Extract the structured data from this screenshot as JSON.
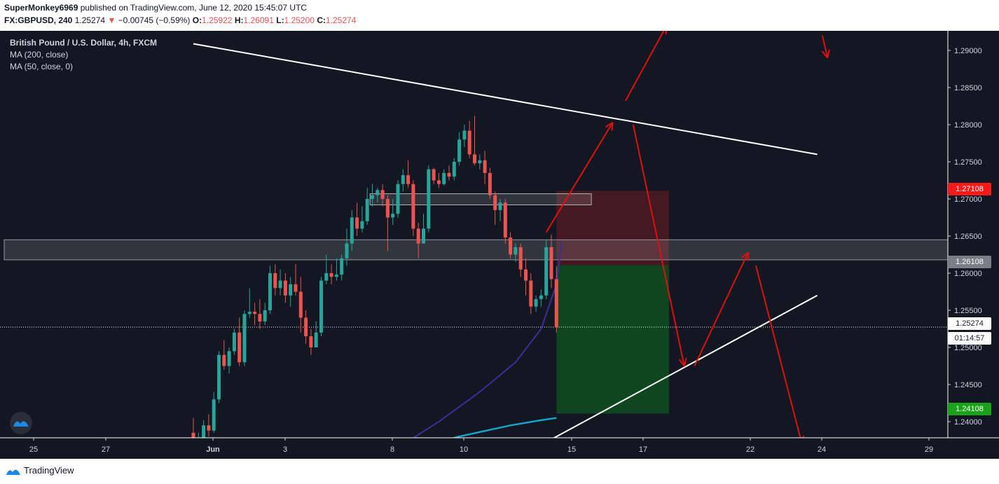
{
  "header": {
    "publisher": "SuperMonkey6969",
    "published_text": "published on TradingView.com, June 12, 2020 15:45:07 UTC",
    "symbol": "FX:GBPUSD, 240",
    "last_price": "1.25274",
    "change_arrow": "▼",
    "change": "−0.00745 (−0.59%)",
    "o_label": "O:",
    "o_value": "1.25922",
    "h_label": "H:",
    "h_value": "1.26091",
    "l_label": "L:",
    "l_value": "1.25200",
    "c_label": "C:",
    "c_value": "1.25274"
  },
  "legend": {
    "title": "British Pound / U.S. Dollar, 4h, FXCM",
    "ma200": "MA (200, close)",
    "ma50": "MA (50, close, 0)"
  },
  "badges": {
    "stop_price": "1.27108",
    "entry_price": "1.26108",
    "current_price": "1.25274",
    "countdown": "01:14:57",
    "target_price": "1.24108"
  },
  "footer": {
    "brand": "TradingView"
  },
  "colors": {
    "background": "#131722",
    "bull": "#26a69a",
    "bear": "#ef5350",
    "ma50": "#3b2f9e",
    "ma200": "#17a6c9",
    "annotation": "#e01010",
    "stop_zone": "#4a1a22",
    "target_zone": "#0f4a1f"
  },
  "chart_data": {
    "type": "candlestick",
    "symbol": "FX:GBPUSD",
    "timeframe": "4h",
    "x_tick_labels": [
      "25",
      "27",
      "Jun",
      "3",
      "8",
      "10",
      "15",
      "17",
      "22",
      "24",
      "29"
    ],
    "y_tick_labels": [
      "1.29000",
      "1.28500",
      "1.28000",
      "1.27500",
      "1.27000",
      "1.26500",
      "1.26000",
      "1.25500",
      "1.25000",
      "1.24500",
      "1.24000"
    ],
    "ylim": [
      1.2365,
      1.2905
    ],
    "candles": [
      {
        "o": 1.2385,
        "h": 1.2405,
        "l": 1.236,
        "c": 1.237
      },
      {
        "o": 1.237,
        "h": 1.2385,
        "l": 1.236,
        "c": 1.2378
      },
      {
        "o": 1.2378,
        "h": 1.2402,
        "l": 1.237,
        "c": 1.2395
      },
      {
        "o": 1.2395,
        "h": 1.241,
        "l": 1.238,
        "c": 1.2388
      },
      {
        "o": 1.2388,
        "h": 1.244,
        "l": 1.2385,
        "c": 1.243
      },
      {
        "o": 1.243,
        "h": 1.2495,
        "l": 1.2425,
        "c": 1.249
      },
      {
        "o": 1.249,
        "h": 1.251,
        "l": 1.247,
        "c": 1.2475
      },
      {
        "o": 1.2475,
        "h": 1.25,
        "l": 1.2465,
        "c": 1.2495
      },
      {
        "o": 1.2495,
        "h": 1.2525,
        "l": 1.249,
        "c": 1.252
      },
      {
        "o": 1.252,
        "h": 1.254,
        "l": 1.2475,
        "c": 1.248
      },
      {
        "o": 1.248,
        "h": 1.255,
        "l": 1.2475,
        "c": 1.2545
      },
      {
        "o": 1.2545,
        "h": 1.258,
        "l": 1.254,
        "c": 1.2548
      },
      {
        "o": 1.2548,
        "h": 1.256,
        "l": 1.253,
        "c": 1.2545
      },
      {
        "o": 1.2545,
        "h": 1.2565,
        "l": 1.2525,
        "c": 1.2535
      },
      {
        "o": 1.2535,
        "h": 1.256,
        "l": 1.253,
        "c": 1.255
      },
      {
        "o": 1.255,
        "h": 1.261,
        "l": 1.2545,
        "c": 1.26
      },
      {
        "o": 1.26,
        "h": 1.2612,
        "l": 1.257,
        "c": 1.258
      },
      {
        "o": 1.258,
        "h": 1.2605,
        "l": 1.257,
        "c": 1.259
      },
      {
        "o": 1.259,
        "h": 1.26,
        "l": 1.256,
        "c": 1.257
      },
      {
        "o": 1.257,
        "h": 1.2595,
        "l": 1.2555,
        "c": 1.2585
      },
      {
        "o": 1.2585,
        "h": 1.2612,
        "l": 1.257,
        "c": 1.2575
      },
      {
        "o": 1.2575,
        "h": 1.2595,
        "l": 1.252,
        "c": 1.254
      },
      {
        "o": 1.254,
        "h": 1.255,
        "l": 1.2505,
        "c": 1.2515
      },
      {
        "o": 1.2515,
        "h": 1.2525,
        "l": 1.249,
        "c": 1.25
      },
      {
        "o": 1.25,
        "h": 1.2535,
        "l": 1.25,
        "c": 1.252
      },
      {
        "o": 1.252,
        "h": 1.2595,
        "l": 1.2515,
        "c": 1.259
      },
      {
        "o": 1.259,
        "h": 1.2625,
        "l": 1.2585,
        "c": 1.26
      },
      {
        "o": 1.26,
        "h": 1.2612,
        "l": 1.2585,
        "c": 1.2595
      },
      {
        "o": 1.2595,
        "h": 1.262,
        "l": 1.259,
        "c": 1.2598
      },
      {
        "o": 1.2598,
        "h": 1.2625,
        "l": 1.259,
        "c": 1.262
      },
      {
        "o": 1.262,
        "h": 1.266,
        "l": 1.261,
        "c": 1.264
      },
      {
        "o": 1.264,
        "h": 1.2685,
        "l": 1.263,
        "c": 1.2675
      },
      {
        "o": 1.2675,
        "h": 1.2695,
        "l": 1.265,
        "c": 1.266
      },
      {
        "o": 1.266,
        "h": 1.269,
        "l": 1.2655,
        "c": 1.267
      },
      {
        "o": 1.267,
        "h": 1.2715,
        "l": 1.2665,
        "c": 1.27
      },
      {
        "o": 1.27,
        "h": 1.272,
        "l": 1.269,
        "c": 1.2705
      },
      {
        "o": 1.2705,
        "h": 1.2715,
        "l": 1.2695,
        "c": 1.2712
      },
      {
        "o": 1.2712,
        "h": 1.272,
        "l": 1.269,
        "c": 1.27
      },
      {
        "o": 1.27,
        "h": 1.2705,
        "l": 1.263,
        "c": 1.2675
      },
      {
        "o": 1.2675,
        "h": 1.27,
        "l": 1.2665,
        "c": 1.268
      },
      {
        "o": 1.268,
        "h": 1.2725,
        "l": 1.2675,
        "c": 1.272
      },
      {
        "o": 1.272,
        "h": 1.274,
        "l": 1.271,
        "c": 1.2732
      },
      {
        "o": 1.2732,
        "h": 1.2752,
        "l": 1.2715,
        "c": 1.272
      },
      {
        "o": 1.272,
        "h": 1.2725,
        "l": 1.265,
        "c": 1.266
      },
      {
        "o": 1.266,
        "h": 1.2668,
        "l": 1.262,
        "c": 1.264
      },
      {
        "o": 1.264,
        "h": 1.268,
        "l": 1.264,
        "c": 1.266
      },
      {
        "o": 1.266,
        "h": 1.2745,
        "l": 1.2655,
        "c": 1.274
      },
      {
        "o": 1.274,
        "h": 1.2742,
        "l": 1.272,
        "c": 1.2725
      },
      {
        "o": 1.2725,
        "h": 1.2735,
        "l": 1.2715,
        "c": 1.272
      },
      {
        "o": 1.272,
        "h": 1.274,
        "l": 1.2718,
        "c": 1.2735
      },
      {
        "o": 1.2735,
        "h": 1.2745,
        "l": 1.2725,
        "c": 1.273
      },
      {
        "o": 1.273,
        "h": 1.2755,
        "l": 1.2725,
        "c": 1.275
      },
      {
        "o": 1.275,
        "h": 1.279,
        "l": 1.2745,
        "c": 1.278
      },
      {
        "o": 1.278,
        "h": 1.28,
        "l": 1.277,
        "c": 1.2792
      },
      {
        "o": 1.2792,
        "h": 1.2805,
        "l": 1.2755,
        "c": 1.276
      },
      {
        "o": 1.276,
        "h": 1.2812,
        "l": 1.2745,
        "c": 1.2748
      },
      {
        "o": 1.2748,
        "h": 1.276,
        "l": 1.274,
        "c": 1.2752
      },
      {
        "o": 1.2752,
        "h": 1.2765,
        "l": 1.272,
        "c": 1.2735
      },
      {
        "o": 1.2735,
        "h": 1.2742,
        "l": 1.27,
        "c": 1.2705
      },
      {
        "o": 1.2705,
        "h": 1.271,
        "l": 1.2665,
        "c": 1.2685
      },
      {
        "o": 1.2685,
        "h": 1.27,
        "l": 1.267,
        "c": 1.2695
      },
      {
        "o": 1.2695,
        "h": 1.27,
        "l": 1.264,
        "c": 1.2648
      },
      {
        "o": 1.2648,
        "h": 1.2655,
        "l": 1.262,
        "c": 1.2625
      },
      {
        "o": 1.2625,
        "h": 1.264,
        "l": 1.2615,
        "c": 1.2635
      },
      {
        "o": 1.2635,
        "h": 1.264,
        "l": 1.2595,
        "c": 1.2605
      },
      {
        "o": 1.2605,
        "h": 1.262,
        "l": 1.257,
        "c": 1.259
      },
      {
        "o": 1.259,
        "h": 1.26,
        "l": 1.2545,
        "c": 1.2555
      },
      {
        "o": 1.2555,
        "h": 1.257,
        "l": 1.2548,
        "c": 1.2565
      },
      {
        "o": 1.2565,
        "h": 1.2578,
        "l": 1.2555,
        "c": 1.257
      },
      {
        "o": 1.257,
        "h": 1.2645,
        "l": 1.2565,
        "c": 1.2635
      },
      {
        "o": 1.2635,
        "h": 1.2652,
        "l": 1.258,
        "c": 1.2592
      },
      {
        "o": 1.2592,
        "h": 1.2609,
        "l": 1.252,
        "c": 1.2527
      }
    ],
    "ma50": [
      [
        40,
        1.2365
      ],
      [
        48,
        1.24
      ],
      [
        56,
        1.244
      ],
      [
        63,
        1.248
      ],
      [
        68,
        1.2525
      ],
      [
        71,
        1.2585
      ],
      [
        72,
        1.2643
      ]
    ],
    "ma200": [
      [
        44,
        1.2365
      ],
      [
        52,
        1.238
      ],
      [
        62,
        1.2395
      ],
      [
        68,
        1.2402
      ],
      [
        71,
        1.2405
      ]
    ],
    "support_zone": [
      1.2618,
      1.2645
    ],
    "resistance_box": [
      1.2692,
      1.2707
    ],
    "trend_lines": [
      {
        "from": [
          0,
          1.2909
        ],
        "to": [
          122,
          1.276
        ]
      },
      {
        "from": [
          67,
          1.2365
        ],
        "to": [
          122,
          1.257
        ]
      }
    ],
    "position": {
      "entry": 1.26108,
      "stop": 1.27108,
      "target": 1.24108,
      "x_start": 71,
      "x_end": 93
    },
    "current_price": 1.25274,
    "projection_arrows": [
      [
        [
          69,
          1.2655
        ],
        [
          82,
          1.2803
        ]
      ],
      [
        [
          84.5,
          1.2832
        ],
        [
          92.5,
          1.2933
        ]
      ],
      [
        [
          86,
          1.28
        ],
        [
          96,
          1.2475
        ]
      ],
      [
        [
          98,
          1.2475
        ],
        [
          108.5,
          1.2628
        ]
      ],
      [
        [
          110,
          1.261
        ],
        [
          119,
          1.237
        ]
      ],
      [
        [
          123,
          1.292
        ],
        [
          124,
          1.289
        ]
      ]
    ]
  }
}
